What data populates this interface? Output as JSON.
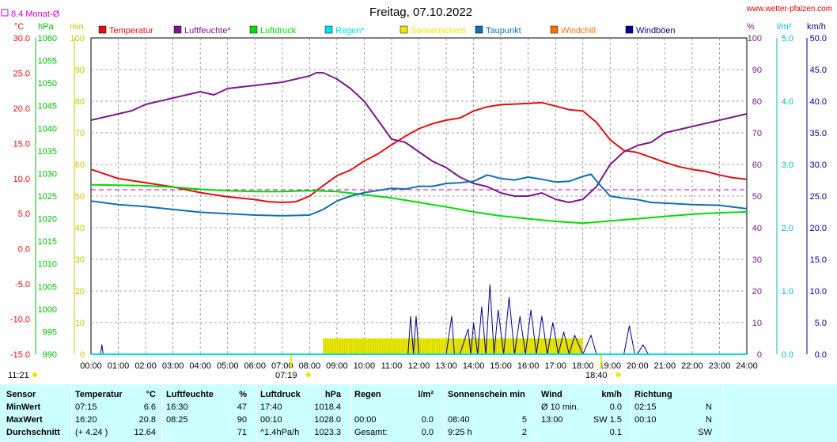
{
  "header": {
    "title": "Freitag, 07.10.2022",
    "site": "www.wetter-pfalzen.com",
    "monthly_avg_label": "8.4 Monat-Ø",
    "units_left": [
      "°C",
      "hPa",
      "min"
    ],
    "units_right": [
      "%",
      "l/m²",
      "km/h"
    ]
  },
  "colors": {
    "temperature": "#e01010",
    "humidity": "#7a1a8a",
    "pressure": "#00dd00",
    "rain": "#00e0e0",
    "sunshine": "#e8e800",
    "dewpoint": "#1070b0",
    "windchill": "#ff7000",
    "gusts": "#000090",
    "monthly_avg": "#d000d0"
  },
  "legend": [
    {
      "label": "Temperatur",
      "color": "#e01010"
    },
    {
      "label": "Luftfeuchte*",
      "color": "#7a1a8a"
    },
    {
      "label": "Luftdruck",
      "color": "#00dd00"
    },
    {
      "label": "Regen*",
      "color": "#00e0e0"
    },
    {
      "label": "Sonnenschein",
      "color": "#e8e800"
    },
    {
      "label": "Taupunkt",
      "color": "#1070b0"
    },
    {
      "label": "Windchill",
      "color": "#ff7000"
    },
    {
      "label": "Windböen",
      "color": "#000090"
    }
  ],
  "axes": {
    "temp": [
      "30.0",
      "25.0",
      "20.0",
      "15.0",
      "10.0",
      "5.0",
      "0.0",
      "-5.0",
      "-10.0",
      "-15.0"
    ],
    "hpa": [
      "1060",
      "1055",
      "1050",
      "1045",
      "1040",
      "1035",
      "1030",
      "1025",
      "1020",
      "1015",
      "1010",
      "1005",
      "1000",
      "995",
      "990"
    ],
    "min": [
      "100",
      "90",
      "80",
      "70",
      "60",
      "50",
      "40",
      "30",
      "20",
      "10",
      "0"
    ],
    "pct": [
      "100",
      "90",
      "80",
      "70",
      "60",
      "50",
      "40",
      "30",
      "20",
      "10",
      "0"
    ],
    "rain": [
      "5.0",
      "4.0",
      "3.0",
      "2.0",
      "1.0",
      "0.0"
    ],
    "kmh": [
      "50.0",
      "45.0",
      "40.0",
      "35.0",
      "30.0",
      "25.0",
      "20.0",
      "15.0",
      "10.0",
      "5.0",
      "0.0"
    ],
    "x_ticks": [
      "00:00",
      "01:00",
      "02:00",
      "03:00",
      "04:00",
      "05:00",
      "06:00",
      "07:00",
      "08:00",
      "09:00",
      "10:00",
      "11:00",
      "12:00",
      "13:00",
      "14:00",
      "15:00",
      "16:00",
      "17:00",
      "18:00",
      "19:00",
      "20:00",
      "21:00",
      "22:00",
      "23:00",
      "24:00"
    ]
  },
  "sun_markers": {
    "sunrise": "07:19",
    "sunset": "18:40",
    "moon": "11:21"
  },
  "chart_data": {
    "type": "line",
    "title": "Freitag, 07.10.2022",
    "x_unit": "hour",
    "xlim": [
      0,
      24
    ],
    "monthly_avg_temp": 8.4,
    "series": [
      {
        "name": "Temperatur",
        "axis": "°C",
        "ylim": [
          -15,
          30
        ],
        "x": [
          0,
          1,
          2,
          3,
          4,
          5,
          6,
          6.5,
          7,
          7.5,
          8,
          8.5,
          9,
          9.5,
          10,
          10.5,
          11,
          11.5,
          12,
          12.5,
          13,
          13.5,
          14,
          14.5,
          15,
          15.5,
          16,
          16.5,
          17,
          17.5,
          18,
          18.5,
          19,
          19.5,
          20,
          20.5,
          21,
          21.5,
          22,
          22.5,
          23,
          23.5,
          24
        ],
        "values": [
          11.3,
          10.0,
          9.4,
          8.8,
          8.0,
          7.4,
          7.0,
          6.7,
          6.6,
          6.7,
          7.5,
          9.0,
          10.4,
          11.2,
          12.5,
          13.5,
          14.8,
          16.0,
          17.1,
          17.8,
          18.3,
          18.6,
          19.6,
          20.2,
          20.5,
          20.6,
          20.7,
          20.8,
          20.3,
          19.8,
          19.6,
          18.0,
          15.5,
          14.0,
          13.7,
          13.0,
          12.3,
          11.7,
          11.3,
          11.0,
          10.5,
          10.1,
          9.9
        ]
      },
      {
        "name": "Luftfeuchte*",
        "axis": "%",
        "ylim": [
          0,
          100
        ],
        "x": [
          0,
          0.5,
          1,
          1.5,
          2,
          3,
          4,
          4.5,
          5,
          6,
          7,
          8,
          8.25,
          8.5,
          9,
          9.5,
          10,
          10.5,
          11,
          11.5,
          12,
          12.5,
          13,
          13.5,
          14,
          14.5,
          15,
          15.5,
          16,
          16.5,
          17,
          17.5,
          18,
          18.5,
          19,
          19.5,
          20,
          20.5,
          21,
          22,
          22.5,
          23,
          23.5,
          24
        ],
        "values": [
          74,
          75,
          76,
          77,
          79,
          81,
          83,
          82,
          84,
          85,
          86,
          88,
          89,
          89,
          87,
          84,
          80,
          74,
          68,
          67,
          64,
          61,
          59,
          56,
          54,
          53,
          51,
          50,
          50,
          51,
          49,
          48,
          49,
          53,
          60,
          64,
          66,
          67,
          70,
          72,
          73,
          74,
          75,
          76
        ]
      },
      {
        "name": "Luftdruck",
        "axis": "hPa",
        "ylim": [
          990,
          1060
        ],
        "x": [
          0,
          1,
          2,
          3,
          4,
          5,
          6,
          7,
          8,
          9,
          10,
          11,
          12,
          13,
          14,
          15,
          16,
          17,
          18,
          19,
          20,
          21,
          22,
          23,
          24
        ],
        "values": [
          1027.5,
          1027.4,
          1027.3,
          1027.0,
          1026.5,
          1026.2,
          1026.0,
          1026.0,
          1026.2,
          1026.0,
          1025.3,
          1024.6,
          1023.6,
          1022.6,
          1021.5,
          1020.6,
          1020.0,
          1019.4,
          1019.0,
          1019.5,
          1020.0,
          1020.5,
          1021.0,
          1021.3,
          1021.5
        ]
      },
      {
        "name": "Taupunkt",
        "axis": "°C",
        "ylim": [
          -15,
          30
        ],
        "x": [
          0,
          1,
          2,
          3,
          4,
          5,
          6,
          7,
          8,
          8.5,
          9,
          9.5,
          10,
          10.5,
          11,
          11.5,
          12,
          12.5,
          13,
          13.5,
          14,
          14.5,
          15,
          15.5,
          16,
          16.5,
          17,
          17.5,
          18,
          18.3,
          18.6,
          19,
          19.5,
          20,
          20.5,
          21,
          22,
          23,
          24
        ],
        "values": [
          6.8,
          6.3,
          6.0,
          5.6,
          5.2,
          5.0,
          4.8,
          4.7,
          4.8,
          5.6,
          6.8,
          7.5,
          8.0,
          8.3,
          8.6,
          8.5,
          8.9,
          8.9,
          9.3,
          9.4,
          9.6,
          10.5,
          10.0,
          9.8,
          10.2,
          9.9,
          9.5,
          9.6,
          10.3,
          10.6,
          9.2,
          7.5,
          7.2,
          7.0,
          6.6,
          6.5,
          6.3,
          6.2,
          5.7
        ]
      },
      {
        "name": "Sonnenschein",
        "axis": "min",
        "ylim": [
          0,
          100
        ],
        "type": "bar",
        "x_start": 8.5,
        "x_end": 18.0,
        "value": 5
      },
      {
        "name": "Windböen",
        "axis": "km/h",
        "ylim": [
          0,
          50
        ],
        "x": [
          0,
          0.35,
          0.4,
          0.45,
          11.6,
          11.7,
          11.8,
          11.9,
          12.0,
          13.0,
          13.2,
          13.3,
          13.5,
          13.8,
          13.9,
          14.0,
          14.15,
          14.3,
          14.45,
          14.6,
          14.75,
          14.9,
          15.1,
          15.3,
          15.5,
          15.7,
          15.9,
          16.1,
          16.3,
          16.5,
          16.7,
          16.9,
          17.1,
          17.3,
          17.5,
          17.7,
          18.0,
          18.3,
          18.5,
          18.7,
          19.5,
          19.7,
          19.9,
          20.0,
          20.2,
          20.4,
          20.6,
          24
        ],
        "values": [
          0,
          0,
          1.5,
          0,
          0,
          6,
          0,
          6,
          0,
          0,
          6,
          0,
          0,
          4,
          0,
          5,
          0,
          7.5,
          0,
          11,
          0,
          7,
          0,
          9,
          0,
          6,
          0,
          7,
          0,
          6,
          0,
          5,
          0,
          3.5,
          0,
          3,
          0,
          3,
          0,
          0,
          0,
          4.5,
          0,
          0,
          1.5,
          0,
          0,
          0
        ]
      },
      {
        "name": "Regen*",
        "axis": "l/m²",
        "ylim": [
          0,
          5
        ],
        "x": [
          0,
          24
        ],
        "values": [
          0,
          0
        ]
      }
    ]
  },
  "table": {
    "row_labels": [
      "Sensor",
      "MinWert",
      "MaxWert",
      "Durchschnitt"
    ],
    "groups": [
      {
        "title": "Temperatur",
        "unit": "°C",
        "rows": [
          [
            "07:15",
            "6.6"
          ],
          [
            "16:20",
            "20.8"
          ],
          [
            "(+ 4.24 )",
            "12.64"
          ]
        ]
      },
      {
        "title": "Luftfeuchte",
        "unit": "%",
        "rows": [
          [
            "16:30",
            "47"
          ],
          [
            "08:25",
            "90"
          ],
          [
            "",
            "71"
          ]
        ]
      },
      {
        "title": "Luftdruck",
        "unit": "hPa",
        "rows": [
          [
            "17:40",
            "1018.4"
          ],
          [
            "00:10",
            "1028.0"
          ],
          [
            "^1.4hPa/h",
            "1023.3"
          ]
        ]
      },
      {
        "title": "Regen",
        "unit": "l/m²",
        "rows": [
          [
            "",
            ""
          ],
          [
            "00:00",
            "0.0"
          ],
          [
            "Gesamt:",
            "0.0"
          ]
        ]
      },
      {
        "title": "Sonnenschein min",
        "unit": "",
        "rows": [
          [
            "",
            ""
          ],
          [
            "08:40",
            "5"
          ],
          [
            "9:25 h",
            "2"
          ]
        ]
      },
      {
        "title": "Wind",
        "unit": "km/h",
        "rows": [
          [
            "Ø 10 min.",
            "0.0"
          ],
          [
            "13:00",
            "SW 1.5"
          ],
          [
            "",
            "0.1"
          ]
        ]
      },
      {
        "title": "Richtung",
        "unit": "",
        "rows": [
          [
            "02:15",
            "N"
          ],
          [
            "00:10",
            "N"
          ],
          [
            "",
            "SW"
          ]
        ]
      }
    ]
  }
}
